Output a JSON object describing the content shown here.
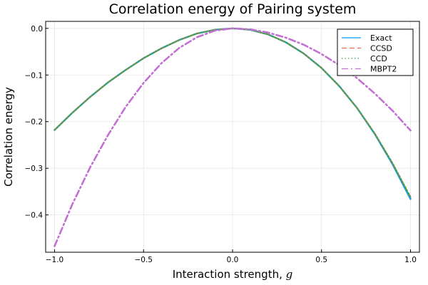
{
  "chart_data": {
    "type": "line",
    "title": "Correlation energy of Pairing system",
    "xlabel": "Interaction strength, ",
    "xlabel_symbol": "g",
    "ylabel": "Correlation energy",
    "xlim": [
      -1.05,
      1.05
    ],
    "ylim": [
      -0.48,
      0.015
    ],
    "grid": true,
    "legend_position": "top-right",
    "x_ticks": [
      -1.0,
      -0.5,
      0.0,
      0.5,
      1.0
    ],
    "x_tick_labels": [
      "−1.0",
      "−0.5",
      "0.0",
      "0.5",
      "1.0"
    ],
    "y_ticks": [
      0.0,
      -0.1,
      -0.2,
      -0.3,
      -0.4
    ],
    "y_tick_labels": [
      "0.0",
      "−0.1",
      "−0.2",
      "−0.3",
      "−0.4"
    ],
    "x": [
      -1.0,
      -0.9,
      -0.8,
      -0.7,
      -0.6,
      -0.5,
      -0.4,
      -0.3,
      -0.2,
      -0.1,
      0.0,
      0.1,
      0.2,
      0.3,
      0.4,
      0.5,
      0.6,
      0.7,
      0.8,
      0.9,
      1.0
    ],
    "series": [
      {
        "name": "Exact",
        "color": "#009AFA",
        "dash": "solid",
        "values": [
          -0.218,
          -0.181,
          -0.147,
          -0.116,
          -0.089,
          -0.064,
          -0.043,
          -0.025,
          -0.011,
          -0.003,
          0.0,
          -0.003,
          -0.013,
          -0.03,
          -0.054,
          -0.085,
          -0.124,
          -0.171,
          -0.227,
          -0.292,
          -0.366
        ]
      },
      {
        "name": "CCSD",
        "color": "#E36F47",
        "dash": "dashed",
        "values": [
          -0.218,
          -0.181,
          -0.147,
          -0.116,
          -0.089,
          -0.064,
          -0.043,
          -0.025,
          -0.011,
          -0.003,
          0.0,
          -0.003,
          -0.013,
          -0.03,
          -0.054,
          -0.085,
          -0.124,
          -0.171,
          -0.226,
          -0.29,
          -0.362
        ]
      },
      {
        "name": "CCD",
        "color": "#3EA44E",
        "dash": "dotted",
        "values": [
          -0.218,
          -0.181,
          -0.147,
          -0.116,
          -0.089,
          -0.064,
          -0.043,
          -0.025,
          -0.011,
          -0.003,
          0.0,
          -0.003,
          -0.013,
          -0.03,
          -0.054,
          -0.085,
          -0.124,
          -0.171,
          -0.226,
          -0.29,
          -0.362
        ]
      },
      {
        "name": "MBPT2",
        "color": "#C271D2",
        "dash": "dashdot",
        "values": [
          -0.467,
          -0.377,
          -0.298,
          -0.229,
          -0.168,
          -0.117,
          -0.075,
          -0.042,
          -0.019,
          -0.005,
          0.0,
          -0.002,
          -0.009,
          -0.02,
          -0.035,
          -0.055,
          -0.079,
          -0.107,
          -0.14,
          -0.177,
          -0.219
        ]
      }
    ]
  }
}
